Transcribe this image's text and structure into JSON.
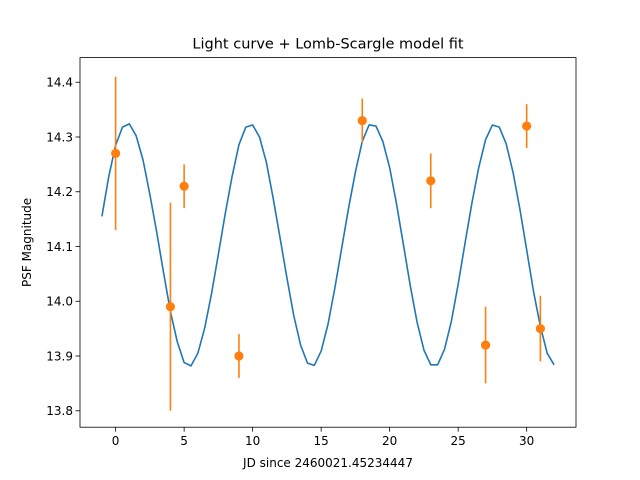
{
  "chart_data": {
    "type": "scatter",
    "title": "Light curve + Lomb-Scargle model fit",
    "xlabel": "JD since 2460021.45234447",
    "ylabel": "PSF Magnitude",
    "xlim": [
      -2.6,
      33.6
    ],
    "ylim": [
      13.77,
      14.445
    ],
    "xticks": [
      0,
      5,
      10,
      15,
      20,
      25,
      30
    ],
    "yticks": [
      13.8,
      13.9,
      14.0,
      14.1,
      14.2,
      14.3,
      14.4
    ],
    "grid": false,
    "legend": "none",
    "series": [
      {
        "kind": "errorbar",
        "color": "#ff7f0e",
        "x": [
          0,
          4,
          5,
          9,
          18,
          23,
          27,
          30,
          31
        ],
        "y": [
          14.27,
          13.99,
          14.21,
          13.9,
          14.33,
          14.22,
          13.92,
          14.32,
          13.95
        ],
        "yerr": [
          0.14,
          0.19,
          0.04,
          0.04,
          0.04,
          0.05,
          0.07,
          0.04,
          0.06
        ]
      },
      {
        "kind": "model",
        "color": "#1f77b4",
        "x": [
          -1.0,
          -0.5,
          0.0,
          0.5,
          1.0,
          1.5,
          2.0,
          2.5,
          3.0,
          3.5,
          4.0,
          4.5,
          5.0,
          5.5,
          6.0,
          6.5,
          7.0,
          7.5,
          8.0,
          8.5,
          9.0,
          9.5,
          10.0,
          10.5,
          11.0,
          11.5,
          12.0,
          12.5,
          13.0,
          13.5,
          14.0,
          14.5,
          15.0,
          15.5,
          16.0,
          16.5,
          17.0,
          17.5,
          18.0,
          18.5,
          19.0,
          19.5,
          20.0,
          20.5,
          21.0,
          21.5,
          22.0,
          22.5,
          23.0,
          23.5,
          24.0,
          24.5,
          25.0,
          25.5,
          26.0,
          26.5,
          27.0,
          27.5,
          28.0,
          28.5,
          29.0,
          29.5,
          30.0,
          30.5,
          31.0,
          31.5,
          32.0
        ],
        "y": [
          14.155,
          14.228,
          14.285,
          14.318,
          14.324,
          14.302,
          14.258,
          14.195,
          14.126,
          14.052,
          13.981,
          13.926,
          13.888,
          13.882,
          13.905,
          13.951,
          14.014,
          14.086,
          14.16,
          14.228,
          14.286,
          14.318,
          14.322,
          14.3,
          14.254,
          14.188,
          14.116,
          14.043,
          13.974,
          13.92,
          13.887,
          13.883,
          13.909,
          13.958,
          14.024,
          14.097,
          14.17,
          14.236,
          14.292,
          14.322,
          14.32,
          14.292,
          14.244,
          14.178,
          14.104,
          14.029,
          13.962,
          13.911,
          13.884,
          13.884,
          13.912,
          13.963,
          14.031,
          14.106,
          14.179,
          14.244,
          14.295,
          14.322,
          14.318,
          14.288,
          14.236,
          14.169,
          14.094,
          14.018,
          13.954,
          13.905,
          13.884
        ]
      }
    ]
  }
}
